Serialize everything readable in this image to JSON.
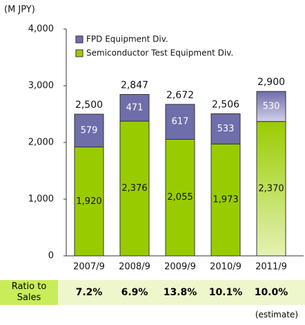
{
  "chart_data": {
    "type": "stacked_bar",
    "unit_label": "(M JPY)",
    "categories": [
      "2007/9",
      "2008/9",
      "2009/9",
      "2010/9",
      "2011/9"
    ],
    "series": [
      {
        "name": "Semiconductor Test Equipment Div.",
        "color": "#99cc00",
        "values": [
          1920,
          2376,
          2055,
          1973,
          2370
        ],
        "value_labels": [
          "1,920",
          "2,376",
          "2,055",
          "1,973",
          "2,370"
        ]
      },
      {
        "name": "FPD Equipment Div.",
        "color": "#6e6eaa",
        "values": [
          579,
          471,
          617,
          533,
          530
        ]
      }
    ],
    "totals": [
      2500,
      2847,
      2672,
      2506,
      2900
    ],
    "total_labels": [
      "2,500",
      "2,847",
      "2,672",
      "2,506",
      "2,900"
    ],
    "ylim": [
      0,
      4000
    ],
    "yticks": [
      0,
      {
        "value": 1000,
        "label": "1,000"
      },
      {
        "value": 2000,
        "label": "2,000"
      },
      {
        "value": 3000,
        "label": "3,000"
      },
      {
        "value": 4000,
        "label": "4,000"
      }
    ]
  },
  "ratio_table": {
    "label": "Ratio to Sales",
    "values": [
      7.2,
      6.9,
      13.8,
      10.1,
      10.0
    ],
    "value_labels": [
      "7.2%",
      "6.9%",
      "13.8%",
      "10.1%",
      "10.0%"
    ],
    "note": "(estimate)"
  }
}
